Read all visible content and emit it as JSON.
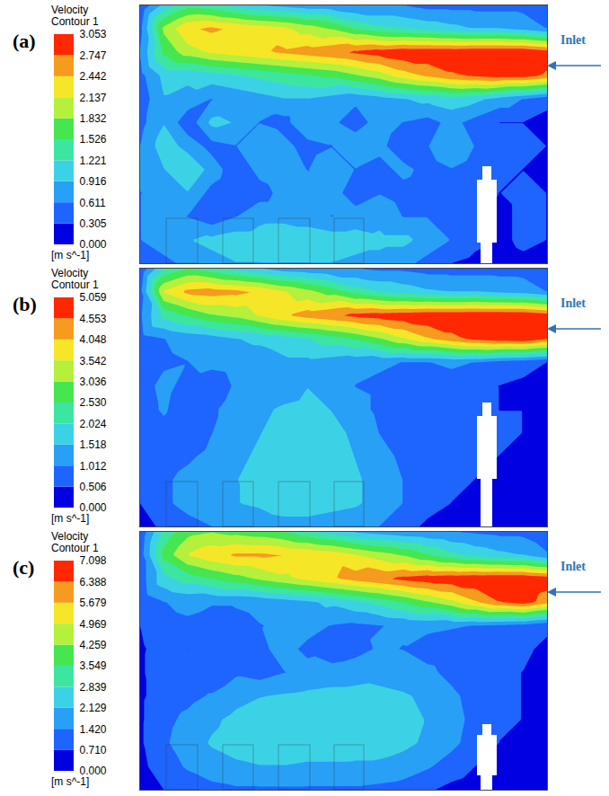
{
  "chart_data": [
    {
      "type": "contour",
      "title": "(a)",
      "tick_labels": false,
      "annotations": [
        {
          "text": "Inlet"
        }
      ],
      "colorbar": {
        "title": "Velocity",
        "subtitle": "Contour 1",
        "unit": "[m s^-1]",
        "lim": [
          0,
          3.053
        ],
        "ticks": [
          {
            "value": 0,
            "label": "0.000"
          },
          0.305,
          0.611,
          0.916,
          1.221,
          1.526,
          1.832,
          2.137,
          2.442,
          2.747,
          3.053
        ]
      },
      "cells": [
        [
          0.3,
          1.0,
          1.4,
          1.3,
          1.1,
          0.9,
          0.8,
          0.7,
          0.7,
          0.6,
          0.6,
          0.6,
          0.5,
          0.5,
          0.5,
          0.5,
          0.5,
          0.3
        ],
        [
          0.5,
          1.9,
          2.4,
          2.5,
          2.4,
          2.3,
          2.2,
          2.0,
          1.8,
          1.5,
          1.3,
          1.2,
          1.1,
          1.0,
          0.9,
          0.9,
          0.8,
          0.6
        ],
        [
          0.6,
          1.6,
          2.0,
          2.2,
          2.3,
          2.4,
          2.5,
          2.6,
          2.7,
          2.8,
          2.9,
          3.0,
          3.0,
          3.0,
          3.05,
          3.05,
          3.05,
          2.9
        ],
        [
          0.5,
          1.0,
          1.0,
          1.1,
          1.2,
          1.3,
          1.4,
          1.5,
          1.6,
          1.8,
          2.0,
          2.3,
          2.5,
          2.7,
          2.8,
          2.9,
          2.9,
          2.7
        ],
        [
          0.4,
          0.9,
          0.8,
          0.6,
          0.7,
          0.8,
          0.9,
          0.9,
          0.8,
          0.7,
          0.8,
          0.9,
          1.0,
          1.1,
          1.0,
          0.8,
          0.6,
          0.4
        ],
        [
          0.5,
          0.9,
          0.4,
          1.0,
          0.9,
          0.6,
          0.5,
          0.9,
          0.7,
          0.4,
          0.8,
          0.6,
          0.5,
          0.7,
          0.5,
          0.3,
          0.3,
          0.2
        ],
        [
          0.6,
          1.1,
          0.8,
          0.5,
          0.6,
          0.9,
          0.7,
          0.5,
          0.6,
          0.9,
          0.7,
          0.4,
          0.6,
          0.8,
          0.6,
          0.5,
          0.4,
          0.3
        ],
        [
          0.7,
          0.9,
          1.2,
          0.8,
          0.4,
          0.7,
          0.8,
          0.6,
          0.8,
          0.6,
          0.5,
          0.7,
          0.5,
          0.6,
          0.5,
          0.4,
          0.3,
          0.2
        ],
        [
          0.6,
          0.7,
          0.9,
          0.5,
          0.3,
          0.5,
          0.7,
          0.9,
          0.7,
          0.5,
          0.6,
          0.5,
          0.4,
          0.5,
          0.4,
          0.3,
          0.4,
          0.3
        ],
        [
          0.6,
          0.8,
          0.6,
          0.4,
          0.6,
          0.8,
          0.8,
          0.7,
          0.6,
          0.7,
          0.8,
          0.6,
          0.6,
          0.5,
          0.4,
          0.2,
          0.4,
          0.3
        ],
        [
          0.6,
          0.8,
          0.9,
          1.0,
          1.1,
          1.1,
          1.2,
          1.2,
          1.1,
          1.1,
          1.0,
          1.0,
          0.8,
          0.6,
          0.4,
          0.2,
          0.4,
          0.3
        ],
        [
          0.3,
          0.5,
          0.7,
          0.8,
          0.9,
          0.9,
          0.9,
          0.9,
          0.9,
          0.8,
          0.8,
          0.7,
          0.5,
          0.3,
          0.2,
          0.1,
          0.2,
          0.1
        ]
      ]
    },
    {
      "type": "contour",
      "title": "(b)",
      "tick_labels": false,
      "annotations": [
        {
          "text": "Inlet"
        }
      ],
      "colorbar": {
        "title": "Velocity",
        "subtitle": "Contour 1",
        "unit": "[m s^-1]",
        "lim": [
          0,
          5.059
        ],
        "ticks": [
          {
            "value": 0,
            "label": "0.000"
          },
          0.506,
          1.012,
          1.518,
          2.024,
          {
            "value": 2.53,
            "label": "2.530"
          },
          3.036,
          3.542,
          4.048,
          4.553,
          5.059
        ]
      },
      "cells": [
        [
          0.5,
          2.0,
          2.5,
          2.2,
          1.8,
          1.5,
          1.2,
          1.1,
          1.0,
          1.0,
          0.9,
          0.9,
          0.8,
          0.8,
          0.8,
          0.8,
          0.8,
          0.5
        ],
        [
          0.8,
          3.6,
          4.2,
          4.3,
          4.2,
          4.0,
          3.6,
          3.2,
          2.8,
          2.3,
          2.0,
          1.8,
          1.6,
          1.5,
          1.5,
          1.4,
          1.3,
          1.0
        ],
        [
          0.9,
          2.2,
          2.6,
          3.0,
          3.2,
          3.6,
          4.0,
          4.3,
          4.5,
          4.7,
          4.8,
          4.9,
          5.0,
          5.0,
          5.05,
          5.05,
          5.05,
          4.8
        ],
        [
          0.8,
          1.0,
          1.2,
          1.3,
          1.5,
          1.6,
          1.8,
          2.0,
          2.3,
          2.6,
          3.0,
          3.5,
          4.0,
          4.4,
          4.7,
          4.9,
          5.0,
          4.6
        ],
        [
          0.7,
          0.9,
          1.0,
          1.2,
          1.3,
          1.3,
          1.4,
          1.4,
          1.3,
          1.2,
          1.1,
          1.0,
          1.0,
          1.1,
          1.0,
          0.8,
          0.7,
          0.5
        ],
        [
          0.7,
          1.2,
          0.8,
          0.6,
          1.1,
          1.3,
          1.2,
          1.5,
          1.3,
          1.0,
          0.9,
          0.6,
          0.7,
          0.8,
          0.6,
          0.5,
          0.4,
          0.3
        ],
        [
          0.7,
          1.1,
          0.6,
          0.9,
          1.3,
          1.4,
          1.6,
          1.7,
          1.5,
          1.2,
          0.9,
          0.7,
          0.6,
          0.9,
          0.7,
          0.5,
          0.5,
          0.4
        ],
        [
          0.7,
          0.8,
          0.5,
          1.0,
          1.3,
          1.5,
          1.7,
          1.8,
          1.7,
          1.4,
          1.0,
          0.8,
          0.7,
          0.8,
          0.7,
          0.6,
          0.5,
          0.4
        ],
        [
          0.6,
          0.7,
          0.9,
          1.2,
          1.4,
          1.6,
          1.8,
          1.9,
          1.8,
          1.5,
          1.2,
          0.9,
          0.7,
          0.7,
          0.6,
          0.5,
          0.5,
          0.4
        ],
        [
          0.6,
          0.9,
          1.2,
          1.4,
          1.5,
          1.7,
          1.8,
          1.9,
          1.8,
          1.6,
          1.3,
          1.0,
          0.8,
          0.6,
          0.5,
          0.4,
          0.5,
          0.4
        ],
        [
          0.5,
          0.9,
          1.2,
          1.4,
          1.5,
          1.6,
          1.8,
          1.8,
          1.7,
          1.6,
          1.3,
          1.0,
          0.7,
          0.5,
          0.3,
          0.3,
          0.4,
          0.3
        ],
        [
          0.3,
          0.6,
          0.8,
          1.0,
          1.1,
          1.2,
          1.3,
          1.3,
          1.2,
          1.1,
          1.0,
          0.7,
          0.4,
          0.2,
          0.2,
          0.1,
          0.2,
          0.1
        ]
      ]
    },
    {
      "type": "contour",
      "title": "(c)",
      "tick_labels": false,
      "annotations": [
        {
          "text": "Inlet"
        }
      ],
      "colorbar": {
        "title": "Velocity",
        "subtitle": "Contour 1",
        "unit": "[m s^-1]",
        "lim": [
          0,
          7.098
        ],
        "ticks": [
          {
            "value": 0,
            "label": "0.000"
          },
          {
            "value": 0.71,
            "label": "0.710"
          },
          {
            "value": 1.42,
            "label": "1.420"
          },
          2.129,
          2.839,
          3.549,
          4.259,
          4.969,
          5.679,
          6.388,
          7.098
        ]
      },
      "cells": [
        [
          0.8,
          3.0,
          4.0,
          4.2,
          4.0,
          3.8,
          3.5,
          3.0,
          2.5,
          2.0,
          1.8,
          1.6,
          1.5,
          1.4,
          1.3,
          1.2,
          1.2,
          0.8
        ],
        [
          1.0,
          3.8,
          5.0,
          5.5,
          5.8,
          5.8,
          5.7,
          5.6,
          5.4,
          5.0,
          4.6,
          4.2,
          3.6,
          3.0,
          2.6,
          2.3,
          2.1,
          1.5
        ],
        [
          1.0,
          2.6,
          3.2,
          3.6,
          4.0,
          4.4,
          4.8,
          5.2,
          5.6,
          6.0,
          6.3,
          6.6,
          6.8,
          6.9,
          7.0,
          7.05,
          7.05,
          6.8
        ],
        [
          0.9,
          1.4,
          1.6,
          1.5,
          1.5,
          1.6,
          1.8,
          2.0,
          2.3,
          2.7,
          3.1,
          3.6,
          4.2,
          4.8,
          5.6,
          6.4,
          6.8,
          6.0
        ],
        [
          0.7,
          1.2,
          1.3,
          1.0,
          1.2,
          1.4,
          1.5,
          1.6,
          1.4,
          1.3,
          1.4,
          1.5,
          1.6,
          1.5,
          1.4,
          1.3,
          1.2,
          0.8
        ],
        [
          0.6,
          1.0,
          0.7,
          1.2,
          1.0,
          1.3,
          1.6,
          1.3,
          1.0,
          1.2,
          1.5,
          1.4,
          1.1,
          1.0,
          1.0,
          0.9,
          0.8,
          0.6
        ],
        [
          0.6,
          1.1,
          0.9,
          0.8,
          1.3,
          1.1,
          1.4,
          1.6,
          1.7,
          1.8,
          1.9,
          1.8,
          1.6,
          1.2,
          1.0,
          0.8,
          0.7,
          0.5
        ],
        [
          0.6,
          1.0,
          1.2,
          1.5,
          1.9,
          2.1,
          2.2,
          2.3,
          2.4,
          2.4,
          2.3,
          2.2,
          2.0,
          1.6,
          1.1,
          0.8,
          0.7,
          0.5
        ],
        [
          0.6,
          1.2,
          1.6,
          2.0,
          2.3,
          2.5,
          2.5,
          2.6,
          2.6,
          2.5,
          2.4,
          2.3,
          2.1,
          1.7,
          1.2,
          0.8,
          0.7,
          0.5
        ],
        [
          0.6,
          1.3,
          1.8,
          2.2,
          2.4,
          2.5,
          2.6,
          2.6,
          2.6,
          2.5,
          2.4,
          2.3,
          2.0,
          1.6,
          1.1,
          0.7,
          0.6,
          0.5
        ],
        [
          0.5,
          1.1,
          1.5,
          1.8,
          2.0,
          2.1,
          2.1,
          2.0,
          2.0,
          2.0,
          2.0,
          1.8,
          1.5,
          1.1,
          0.7,
          0.5,
          0.6,
          0.4
        ],
        [
          0.3,
          0.7,
          1.0,
          1.2,
          1.3,
          1.3,
          1.3,
          1.3,
          1.3,
          1.3,
          1.2,
          1.1,
          0.8,
          0.5,
          0.3,
          0.2,
          0.3,
          0.2
        ]
      ]
    }
  ]
}
